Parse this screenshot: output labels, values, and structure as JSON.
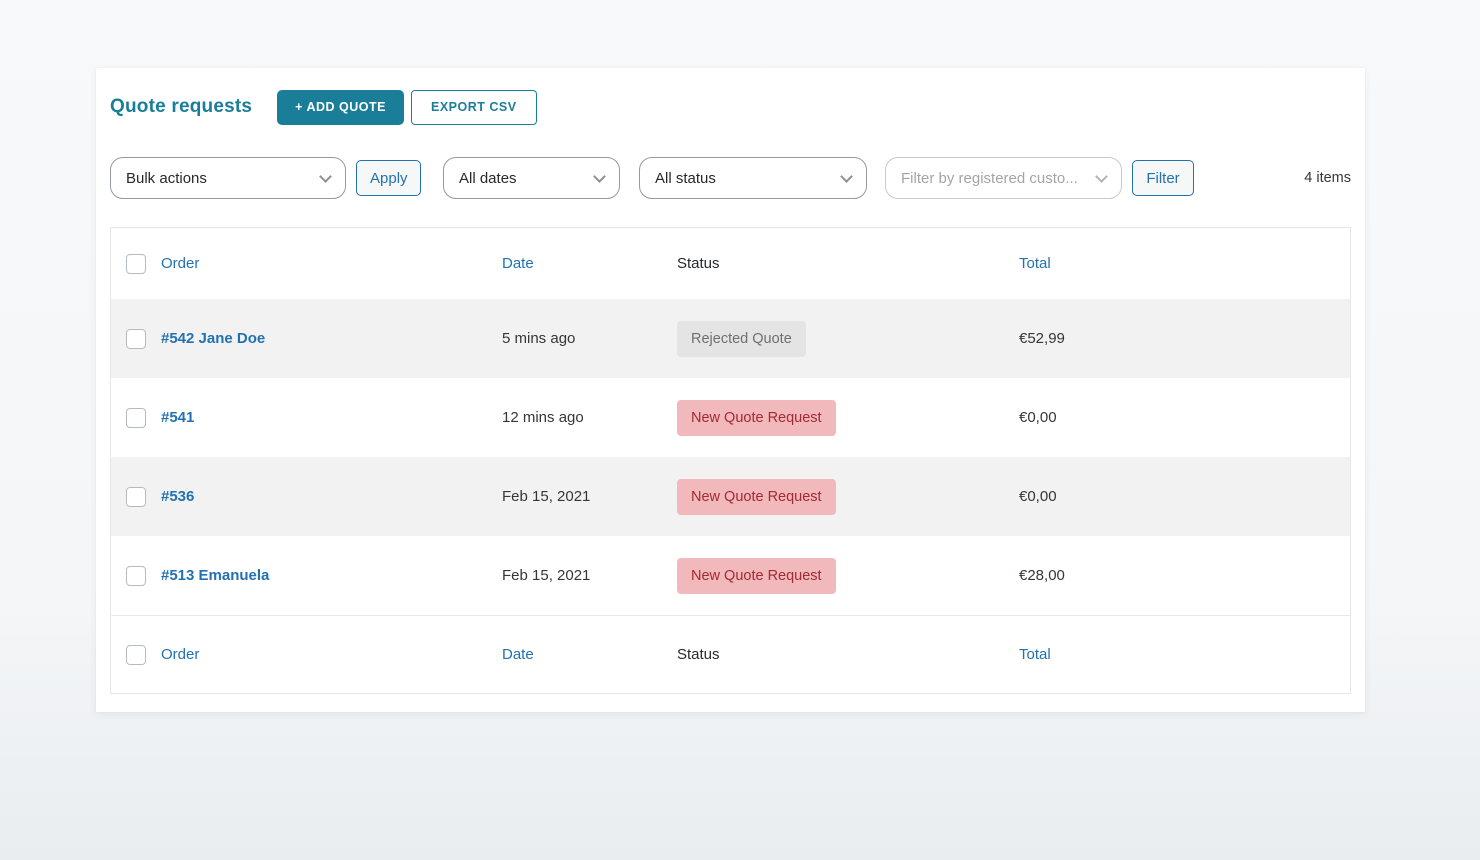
{
  "page": {
    "title": "Quote requests"
  },
  "toolbar": {
    "add_quote_label": "+ ADD QUOTE",
    "export_csv_label": "EXPORT CSV"
  },
  "filters": {
    "bulk_actions_value": "Bulk actions",
    "apply_label": "Apply",
    "all_dates_value": "All dates",
    "all_status_value": "All status",
    "customer_placeholder": "Filter by registered custo...",
    "filter_label": "Filter",
    "items_count": "4 items"
  },
  "table": {
    "columns": {
      "order": "Order",
      "date": "Date",
      "status": "Status",
      "total": "Total"
    },
    "rows": [
      {
        "order": "#542 Jane Doe",
        "date": "5 mins ago",
        "status": "Rejected Quote",
        "status_type": "rejected",
        "total": "€52,99"
      },
      {
        "order": "#541",
        "date": "12 mins ago",
        "status": "New Quote Request",
        "status_type": "new",
        "total": "€0,00"
      },
      {
        "order": "#536",
        "date": "Feb 15, 2021",
        "status": "New Quote Request",
        "status_type": "new",
        "total": "€0,00"
      },
      {
        "order": "#513 Emanuela",
        "date": "Feb 15, 2021",
        "status": "New Quote Request",
        "status_type": "new",
        "total": "€28,00"
      }
    ]
  },
  "colors": {
    "accent": "#1a7e99",
    "link": "#2271b1",
    "status_new_bg": "#f1b9bc",
    "status_new_text": "#a42a33",
    "status_rejected_bg": "#e4e4e4",
    "status_rejected_text": "#6f6f6f"
  }
}
